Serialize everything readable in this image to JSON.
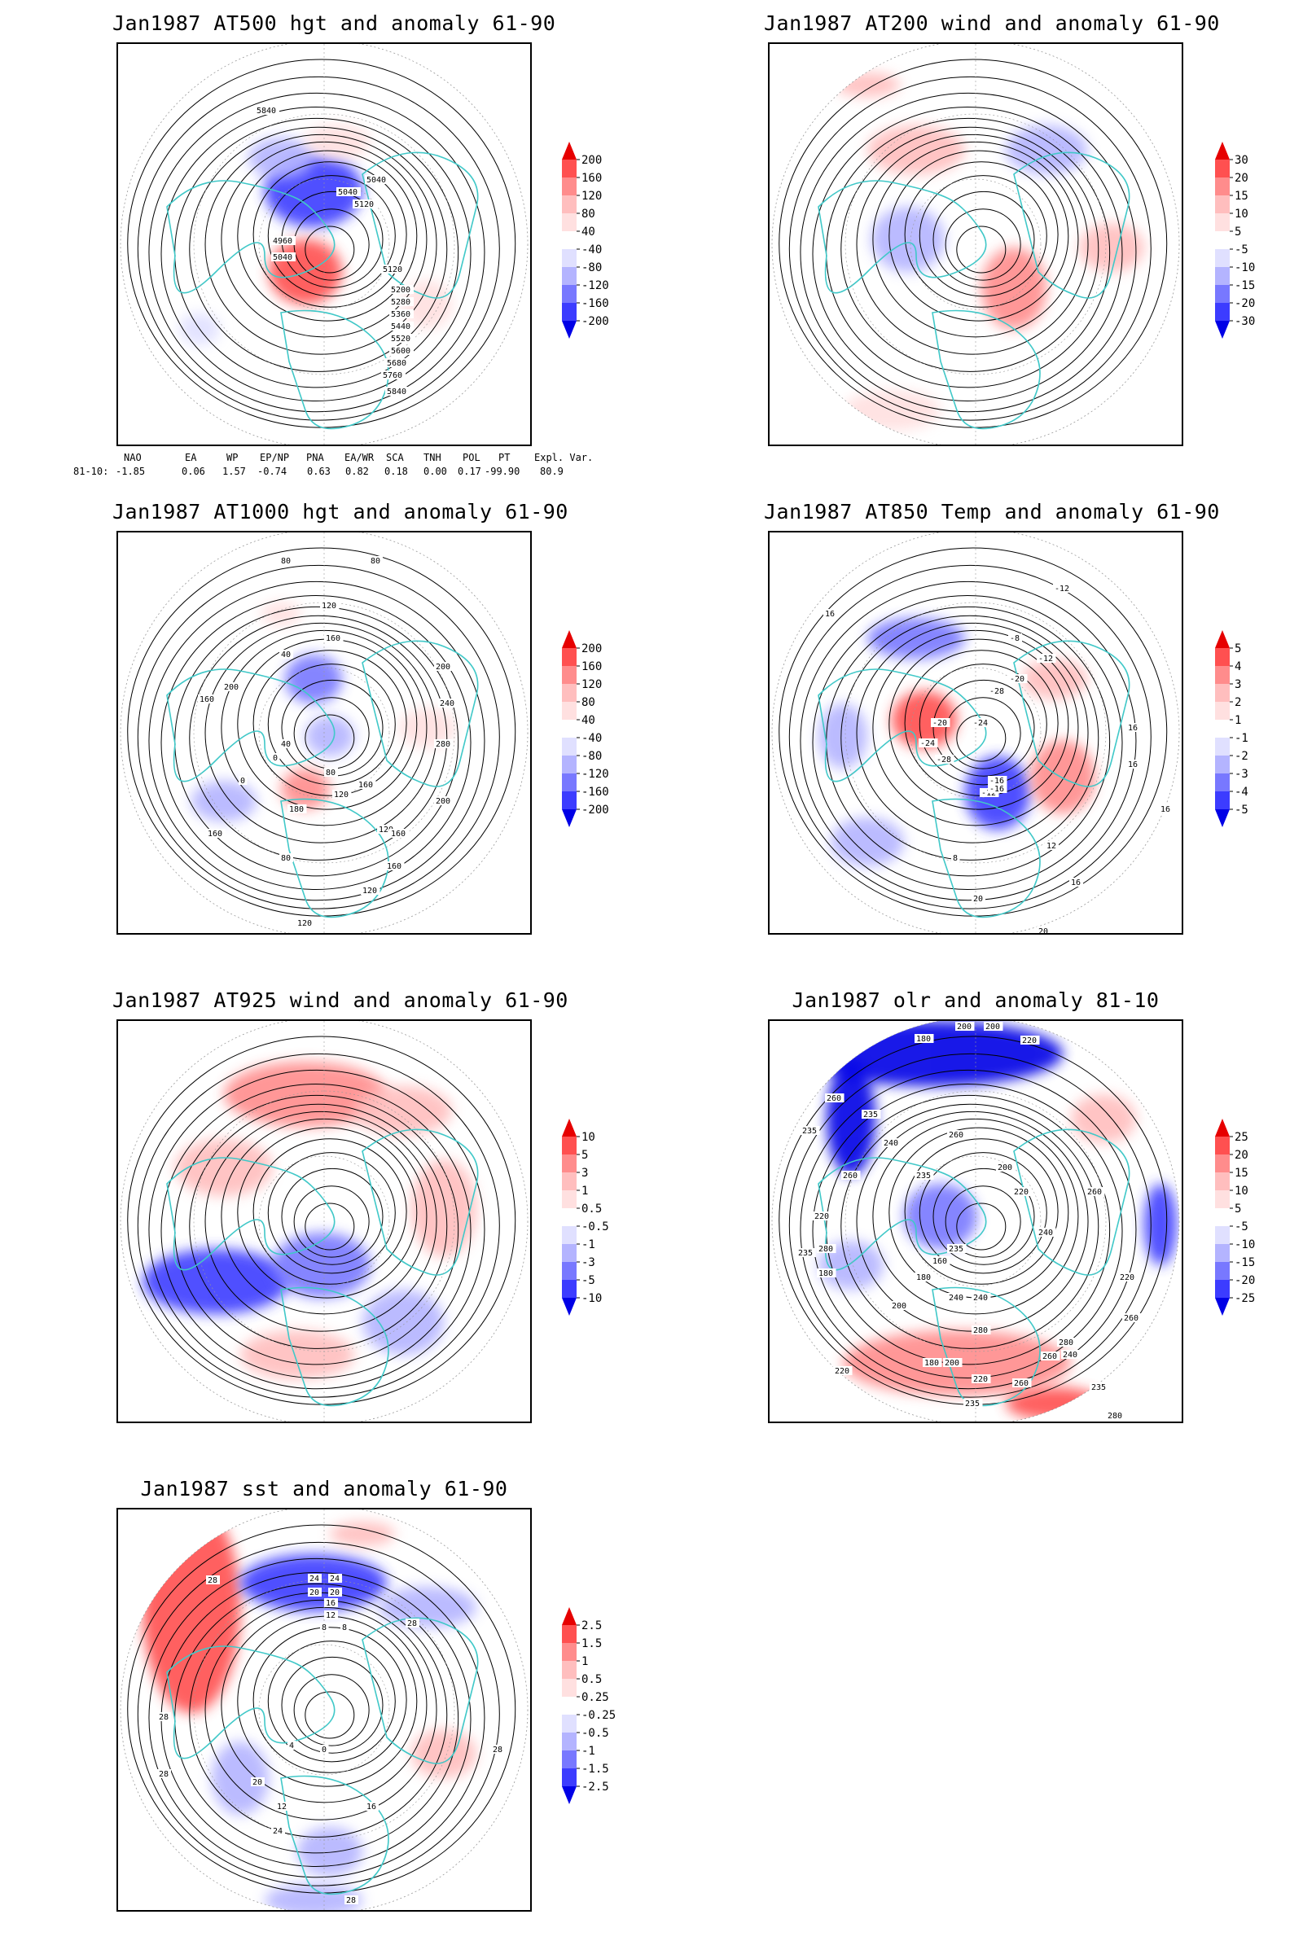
{
  "panels": [
    {
      "title": "Jan1987 AT500 hgt and anomaly 61-90",
      "legend": {
        "levels": [
          "200",
          "160",
          "120",
          "80",
          "40",
          "-40",
          "-80",
          "-120",
          "-160",
          "-200"
        ],
        "colors": [
          "#e60000",
          "#ff5050",
          "#ff8c8c",
          "#ffbebe",
          "#ffe0e0",
          "#ffffff",
          "#e0e0ff",
          "#b4b4ff",
          "#7878ff",
          "#3c3cff",
          "#0000e6"
        ]
      },
      "contour_labels": [
        "5840",
        "5040",
        "5120",
        "4960",
        "5040",
        "5120",
        "5200",
        "5280",
        "5360",
        "5440",
        "5520",
        "5600",
        "5680",
        "5760",
        "5840",
        "5040"
      ]
    },
    {
      "title": "Jan1987 AT200 wind and anomaly 61-90",
      "legend": {
        "levels": [
          "30",
          "20",
          "15",
          "10",
          "5",
          "-5",
          "-10",
          "-15",
          "-20",
          "-30"
        ],
        "colors": [
          "#e60000",
          "#ff5050",
          "#ff8c8c",
          "#ffbebe",
          "#ffe0e0",
          "#ffffff",
          "#e0e0ff",
          "#b4b4ff",
          "#7878ff",
          "#3c3cff",
          "#0000e6"
        ]
      },
      "contour_labels": []
    },
    {
      "title": "Jan1987 AT1000 hgt and anomaly 61-90",
      "legend": {
        "levels": [
          "200",
          "160",
          "120",
          "80",
          "40",
          "-40",
          "-80",
          "-120",
          "-160",
          "-200"
        ],
        "colors": [
          "#e60000",
          "#ff5050",
          "#ff8c8c",
          "#ffbebe",
          "#ffe0e0",
          "#ffffff",
          "#e0e0ff",
          "#b4b4ff",
          "#7878ff",
          "#3c3cff",
          "#0000e6"
        ]
      },
      "contour_labels": [
        "80",
        "80",
        "120",
        "160",
        "40",
        "200",
        "240",
        "200",
        "160",
        "280",
        "40",
        "0",
        "80",
        "120",
        "160",
        "180",
        "200",
        "160",
        "120",
        "80",
        "160",
        "160",
        "120",
        "120",
        "0"
      ]
    },
    {
      "title": "Jan1987 AT850 Temp and anomaly 61-90",
      "legend": {
        "levels": [
          "5",
          "4",
          "3",
          "2",
          "1",
          "-1",
          "-2",
          "-3",
          "-4",
          "-5"
        ],
        "colors": [
          "#e60000",
          "#ff5050",
          "#ff8c8c",
          "#ffbebe",
          "#ffe0e0",
          "#ffffff",
          "#e0e0ff",
          "#b4b4ff",
          "#7878ff",
          "#3c3cff",
          "#0000e6"
        ]
      },
      "contour_labels": [
        "-12",
        "16",
        "-8",
        "-12",
        "-20",
        "-28",
        "-24",
        "-20",
        "-24",
        "-28",
        "-16",
        "-12",
        "16",
        "16",
        "12",
        "16",
        "8",
        "20",
        "16",
        "20",
        "-16"
      ]
    },
    {
      "title": "Jan1987 AT925 wind and anomaly 61-90",
      "legend": {
        "levels": [
          "10",
          "5",
          "3",
          "1",
          "0.5",
          "-0.5",
          "-1",
          "-3",
          "-5",
          "-10"
        ],
        "colors": [
          "#e60000",
          "#ff5050",
          "#ff8c8c",
          "#ffbebe",
          "#ffe0e0",
          "#ffffff",
          "#e0e0ff",
          "#b4b4ff",
          "#7878ff",
          "#3c3cff",
          "#0000e6"
        ]
      },
      "contour_labels": []
    },
    {
      "title": "Jan1987 olr and anomaly 81-10",
      "legend": {
        "levels": [
          "25",
          "20",
          "15",
          "10",
          "5",
          "-5",
          "-10",
          "-15",
          "-20",
          "-25"
        ],
        "colors": [
          "#e60000",
          "#ff5050",
          "#ff8c8c",
          "#ffbebe",
          "#ffe0e0",
          "#ffffff",
          "#e0e0ff",
          "#b4b4ff",
          "#7878ff",
          "#3c3cff",
          "#0000e6"
        ]
      },
      "contour_labels": [
        "180",
        "200",
        "200",
        "220",
        "235",
        "260",
        "235",
        "240",
        "260",
        "235",
        "200",
        "220",
        "260",
        "240",
        "220",
        "235",
        "180",
        "160",
        "180",
        "240",
        "280",
        "200",
        "180",
        "200",
        "220",
        "235",
        "220",
        "260",
        "280",
        "240",
        "235",
        "280",
        "260",
        "260",
        "280",
        "240",
        "235",
        "220",
        "260"
      ]
    },
    {
      "title": "Jan1987 sst and anomaly 61-90",
      "legend": {
        "levels": [
          "2.5",
          "1.5",
          "1",
          "0.5",
          "0.25",
          "-0.25",
          "-0.5",
          "-1",
          "-1.5",
          "-2.5"
        ],
        "colors": [
          "#e60000",
          "#ff5050",
          "#ff8c8c",
          "#ffbebe",
          "#ffe0e0",
          "#ffffff",
          "#e0e0ff",
          "#b4b4ff",
          "#7878ff",
          "#3c3cff",
          "#0000e6"
        ]
      },
      "contour_labels": [
        "28",
        "24",
        "24",
        "20",
        "20",
        "16",
        "12",
        "8",
        "8",
        "28",
        "28",
        "28",
        "28",
        "4",
        "0",
        "12",
        "20",
        "24",
        "28",
        "16"
      ]
    }
  ],
  "index_table": {
    "headers": [
      "NAO",
      "EA",
      "WP",
      "EP/NP",
      "PNA",
      "EA/WR",
      "SCA",
      "TNH",
      "POL",
      "PT",
      "Expl. Var."
    ],
    "row_label": "81-10:",
    "values": [
      "-1.85",
      "0.06",
      "1.57",
      "-0.74",
      "0.63",
      "0.82",
      "0.18",
      "0.00",
      "0.17",
      "-99.90",
      "80.9"
    ]
  },
  "colors": {
    "coastline": "#40c8c8",
    "contour": "#000000",
    "grid": "#999999"
  }
}
